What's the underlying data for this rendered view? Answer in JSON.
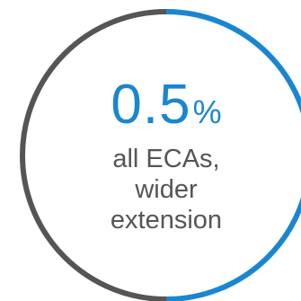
{
  "chart_data": {
    "type": "pie",
    "value": 0.5,
    "unit": "%",
    "label_lines": [
      "all ECAs,",
      "wider",
      "extension"
    ],
    "arc_fraction_highlighted": 0.5,
    "highlight_side": "right",
    "colors": {
      "highlight": "#1a86d0",
      "remainder": "#555555",
      "value_text": "#1a86d0",
      "label_text": "#555555"
    }
  }
}
